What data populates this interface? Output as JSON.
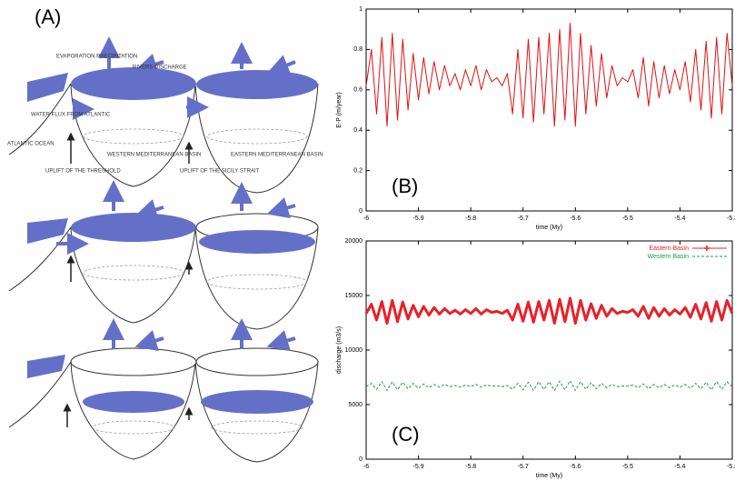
{
  "diagram": {
    "panel_label": "(A)",
    "labels": {
      "evaporation": "EVAPORATION PRECIPITATION",
      "rivers": "RIVERS DISCHARGE",
      "water_flux": "WATER FLUX FROM ATLANTIC",
      "atlantic": "ATLANTIC OCEAN",
      "uplift_threshold": "UPLIFT OF THE THRESHOLD",
      "western_basin": "WESTERN MEDITERRANEAN BASIN",
      "uplift_sicily": "UPLIFT OF THE SICILY STRAIT",
      "eastern_basin": "EASTERN MEDITERRANEAN BASIN"
    }
  },
  "chart_data": [
    {
      "type": "line",
      "panel_label": "(B)",
      "xlabel": "time (My)",
      "ylabel": "E-P (m/year)",
      "xlim": [
        -6,
        -5.3
      ],
      "ylim": [
        0,
        1
      ],
      "xticks": [
        -6,
        -5.9,
        -5.8,
        -5.7,
        -5.6,
        -5.5,
        -5.4,
        -5.3
      ],
      "yticks": [
        0,
        0.2,
        0.4,
        0.6,
        0.8,
        1
      ],
      "x": [
        -6,
        -5.99,
        -5.98,
        -5.97,
        -5.96,
        -5.95,
        -5.94,
        -5.93,
        -5.92,
        -5.91,
        -5.9,
        -5.89,
        -5.88,
        -5.87,
        -5.86,
        -5.85,
        -5.84,
        -5.83,
        -5.82,
        -5.81,
        -5.8,
        -5.79,
        -5.78,
        -5.77,
        -5.76,
        -5.75,
        -5.74,
        -5.73,
        -5.72,
        -5.71,
        -5.7,
        -5.69,
        -5.68,
        -5.67,
        -5.66,
        -5.65,
        -5.64,
        -5.63,
        -5.62,
        -5.61,
        -5.6,
        -5.59,
        -5.58,
        -5.57,
        -5.56,
        -5.55,
        -5.54,
        -5.53,
        -5.52,
        -5.51,
        -5.5,
        -5.49,
        -5.48,
        -5.47,
        -5.46,
        -5.45,
        -5.44,
        -5.43,
        -5.42,
        -5.41,
        -5.4,
        -5.39,
        -5.38,
        -5.37,
        -5.36,
        -5.35,
        -5.34,
        -5.33,
        -5.32,
        -5.31,
        -5.3
      ],
      "series": [
        {
          "color": "#e01010",
          "values": [
            0.62,
            0.8,
            0.48,
            0.86,
            0.42,
            0.88,
            0.45,
            0.85,
            0.5,
            0.78,
            0.55,
            0.76,
            0.58,
            0.74,
            0.6,
            0.72,
            0.62,
            0.68,
            0.6,
            0.7,
            0.62,
            0.72,
            0.6,
            0.7,
            0.64,
            0.66,
            0.62,
            0.68,
            0.48,
            0.8,
            0.46,
            0.85,
            0.44,
            0.86,
            0.48,
            0.88,
            0.42,
            0.9,
            0.45,
            0.93,
            0.42,
            0.88,
            0.48,
            0.82,
            0.52,
            0.78,
            0.56,
            0.72,
            0.62,
            0.66,
            0.64,
            0.7,
            0.56,
            0.76,
            0.52,
            0.74,
            0.56,
            0.72,
            0.58,
            0.7,
            0.6,
            0.74,
            0.54,
            0.8,
            0.5,
            0.84,
            0.46,
            0.86,
            0.48,
            0.88,
            0.62
          ]
        }
      ]
    },
    {
      "type": "line",
      "panel_label": "(C)",
      "xlabel": "time (My)",
      "ylabel": "discharge (m3/s)",
      "xlim": [
        -6,
        -5.3
      ],
      "ylim": [
        0,
        20000
      ],
      "xticks": [
        -6,
        -5.9,
        -5.8,
        -5.7,
        -5.6,
        -5.5,
        -5.4,
        -5.3
      ],
      "yticks": [
        0,
        5000,
        10000,
        15000,
        20000
      ],
      "x": [
        -6,
        -5.99,
        -5.98,
        -5.97,
        -5.96,
        -5.95,
        -5.94,
        -5.93,
        -5.92,
        -5.91,
        -5.9,
        -5.89,
        -5.88,
        -5.87,
        -5.86,
        -5.85,
        -5.84,
        -5.83,
        -5.82,
        -5.81,
        -5.8,
        -5.79,
        -5.78,
        -5.77,
        -5.76,
        -5.75,
        -5.74,
        -5.73,
        -5.72,
        -5.71,
        -5.7,
        -5.69,
        -5.68,
        -5.67,
        -5.66,
        -5.65,
        -5.64,
        -5.63,
        -5.62,
        -5.61,
        -5.6,
        -5.59,
        -5.58,
        -5.57,
        -5.56,
        -5.55,
        -5.54,
        -5.53,
        -5.52,
        -5.51,
        -5.5,
        -5.49,
        -5.48,
        -5.47,
        -5.46,
        -5.45,
        -5.44,
        -5.43,
        -5.42,
        -5.41,
        -5.4,
        -5.39,
        -5.38,
        -5.37,
        -5.36,
        -5.35,
        -5.34,
        -5.33,
        -5.32,
        -5.31,
        -5.3
      ],
      "series": [
        {
          "name": "Eastern Basin",
          "color": "#e8202a",
          "values": [
            13350,
            14200,
            12750,
            14450,
            12450,
            14550,
            12600,
            14400,
            12850,
            14100,
            13050,
            14000,
            13200,
            13900,
            13300,
            13800,
            13350,
            13650,
            13300,
            13700,
            13350,
            13800,
            13300,
            13700,
            13450,
            13550,
            13350,
            13650,
            12750,
            14200,
            12650,
            14400,
            12550,
            14450,
            12750,
            14550,
            12450,
            14650,
            12600,
            14750,
            12450,
            14550,
            12750,
            14250,
            12900,
            14100,
            13100,
            13800,
            13350,
            13550,
            13450,
            13700,
            13100,
            14000,
            12900,
            13900,
            13100,
            13800,
            13200,
            13700,
            13300,
            13900,
            13000,
            14200,
            12850,
            14350,
            12650,
            14450,
            12750,
            14550,
            13350
          ]
        },
        {
          "name": "Western Basin",
          "color": "#1a9a50",
          "values": [
            6650,
            6950,
            6400,
            7100,
            6300,
            7100,
            6350,
            7050,
            6450,
            6950,
            6500,
            6900,
            6550,
            6850,
            6600,
            6850,
            6650,
            6750,
            6600,
            6800,
            6650,
            6850,
            6600,
            6800,
            6700,
            6700,
            6650,
            6750,
            6400,
            6950,
            6350,
            7050,
            6300,
            7100,
            6400,
            7100,
            6300,
            7150,
            6350,
            7200,
            6300,
            7100,
            6400,
            7000,
            6450,
            6950,
            6550,
            6850,
            6650,
            6700,
            6700,
            6800,
            6550,
            6900,
            6450,
            6850,
            6550,
            6850,
            6550,
            6800,
            6600,
            6850,
            6500,
            6950,
            6450,
            7050,
            6350,
            7100,
            6400,
            7100,
            6650
          ]
        }
      ]
    }
  ]
}
